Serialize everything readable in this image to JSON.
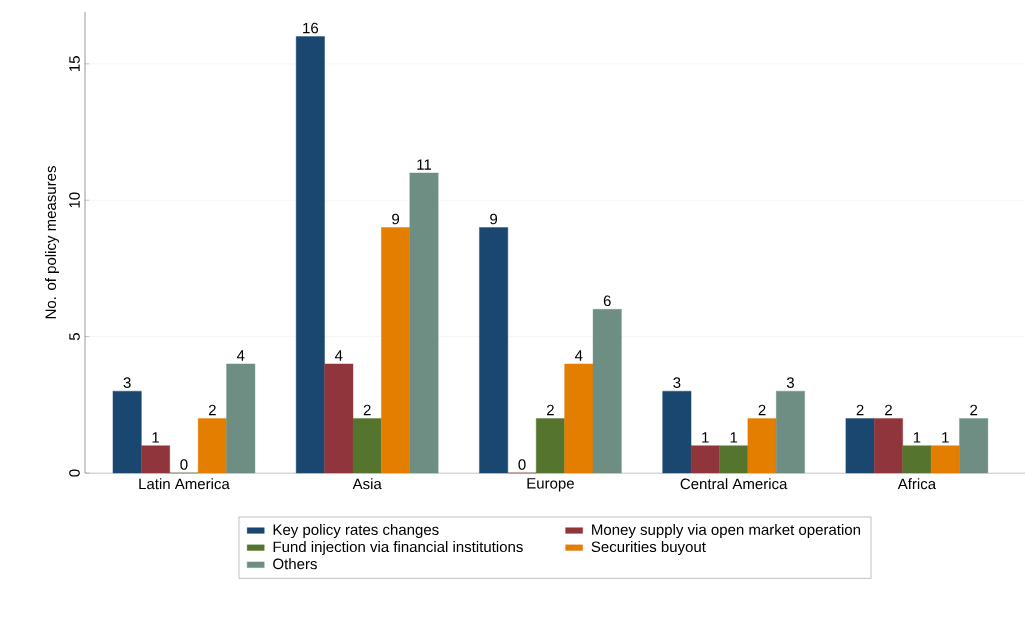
{
  "chart_data": {
    "type": "bar",
    "ylabel": "No. of policy measures",
    "categories": [
      "Latin America",
      "Asia",
      "Europe",
      "Central America",
      "Africa"
    ],
    "series": [
      {
        "name": "Key policy rates changes",
        "color": "#1a476f",
        "values": [
          3,
          16,
          9,
          3,
          2
        ]
      },
      {
        "name": "Money supply via open market operation",
        "color": "#90353b",
        "values": [
          1,
          4,
          0,
          1,
          2
        ]
      },
      {
        "name": "Fund injection via financial institutions",
        "color": "#55752f",
        "values": [
          0,
          2,
          2,
          1,
          1
        ]
      },
      {
        "name": "Securities buyout",
        "color": "#e37e00",
        "values": [
          2,
          9,
          4,
          2,
          1
        ]
      },
      {
        "name": "Others",
        "color": "#6e8e84",
        "values": [
          4,
          11,
          6,
          3,
          2
        ]
      }
    ],
    "ylim": [
      0,
      16.9
    ],
    "yticks": [
      0,
      5,
      10,
      15
    ],
    "grid": "y",
    "legend": "bottom",
    "data_labels": true
  }
}
